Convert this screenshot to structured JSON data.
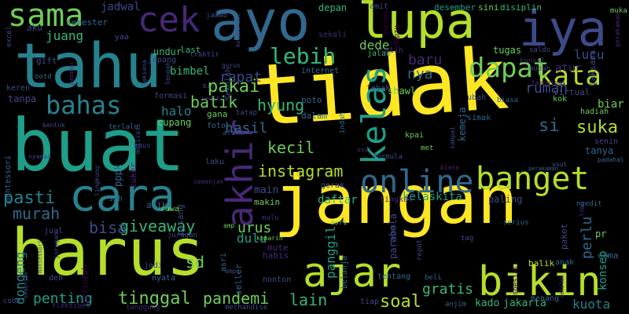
{
  "palette": {
    "background": "#000000",
    "yellow": "#fde725",
    "lime": "#b5de2b",
    "green": "#6ece58",
    "mint": "#35b779",
    "teal": "#1f9e89",
    "cyan": "#26828e",
    "steel": "#31688e",
    "indigo": "#3e4a89",
    "violet": "#482878",
    "purple": "#440154"
  },
  "words": [
    "tidak",
    "jangan",
    "buat",
    "harus",
    "tahu",
    "ayo",
    "lupa",
    "iya",
    "bikin",
    "cara",
    "ajar",
    "sama",
    "cek",
    "banget",
    "online",
    "kata",
    "akhir",
    "bahas",
    "dapat",
    "lebih",
    "kelas",
    "instagram",
    "pakai",
    "pasti",
    "giveaway",
    "batik",
    "hyung",
    "murah",
    "bisa",
    "tinggal",
    "penting",
    "pandemi",
    "kecil",
    "soal",
    "suka",
    "gratis",
    "lain",
    "rapat",
    "hasil",
    "juang",
    "nya",
    "baru",
    "dede",
    "si",
    "rumah",
    "lucu",
    "atur",
    "panggil",
    "perlu",
    "kuota",
    "konsep",
    "dongeng",
    "kelaskita",
    "daftar",
    "main",
    "urus",
    "sd",
    "dulu",
    "halo",
    "bimbel",
    "depan",
    "jadwal",
    "semester",
    "undur",
    "jepang",
    "tugas",
    "kemeja",
    "shawl",
    "poto",
    "cupang",
    "biar",
    "hadiah",
    "tanya",
    "senin",
    "jakarta",
    "kado",
    "menang",
    "kpai",
    "internet",
    "jalan",
    "latih",
    "amit",
    "desember",
    "sini",
    "disiplin",
    "mute",
    "habis",
    "makin",
    "sih",
    "seller",
    "paket",
    "anak",
    "cuma",
    "asik",
    "gift",
    "keren",
    "tanpa",
    "formasi",
    "aku",
    "excel",
    "sekali",
    "muka",
    "jawab",
    "hidup",
    "ubah",
    "virtual",
    "kok",
    "teknologi",
    "last",
    "yaa",
    "traktir",
    "konsul",
    "saldo",
    "mudah",
    "lupa",
    "rawa",
    "laku",
    "tuker",
    "pasang",
    "gana",
    "foto",
    "afiff",
    "tatap",
    "dalam",
    "simak",
    "parabola",
    "tentang",
    "nyata",
    "jadi",
    "bentuk",
    "terlalu",
    "motivasi",
    "ootd",
    "jual",
    "deh",
    "coba",
    "perintah",
    "fleksibel",
    "tanggung",
    "nonton",
    "beli",
    "mechandise",
    "tiap",
    "anjim",
    "indah",
    "gerak",
    "formula",
    "ngedit",
    "serius",
    "sampai",
    "met",
    "kaus",
    "repot",
    "belanja",
    "tag",
    "pr",
    "balik",
    "spesial",
    "tingkat",
    "paling",
    "lingkung",
    "malu",
    "kemarin",
    "asri",
    "amp",
    "juragan",
    "tebak",
    "biasa",
    "usul",
    "perakaman",
    "padahal",
    "montessori",
    "semenjak",
    "tengah",
    "pppk",
    "gurus",
    "bio",
    "sedikit",
    "laksana",
    "sekolah",
    "kolaborasi",
    "diploma",
    "nyaman",
    "panjang",
    "mongo",
    "fahmi",
    "gopay",
    "bagai",
    "intimidasi",
    "pembelajaran",
    "muhammad",
    "tanda",
    "bu"
  ]
}
